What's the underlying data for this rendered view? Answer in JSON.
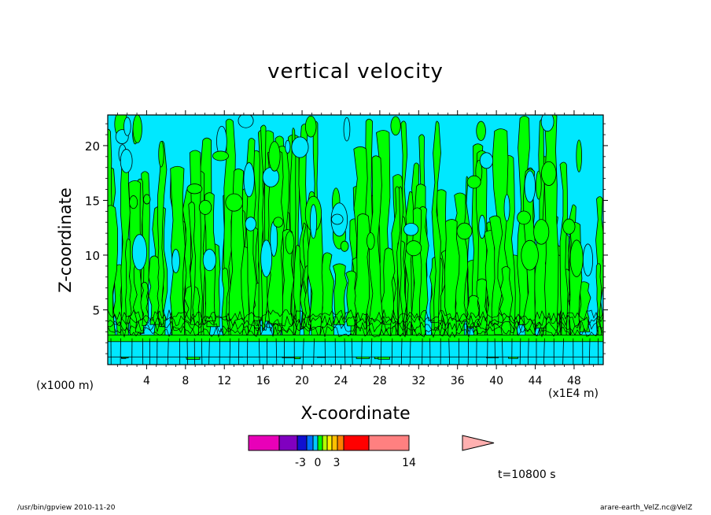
{
  "chart_data": {
    "type": "heatmap",
    "title": "vertical velocity",
    "xlabel": "X-coordinate",
    "ylabel": "Z-coordinate",
    "x_unit_left": "(x1000 m)",
    "x_unit_right": "(x1E4 m)",
    "x_ticks": [
      "4",
      "8",
      "12",
      "16",
      "20",
      "24",
      "28",
      "32",
      "36",
      "40",
      "44",
      "48"
    ],
    "x_tick_values": [
      4,
      8,
      12,
      16,
      20,
      24,
      28,
      32,
      36,
      40,
      44,
      48
    ],
    "y_ticks": [
      "5",
      "10",
      "15",
      "20"
    ],
    "y_tick_values": [
      5,
      10,
      15,
      20
    ],
    "xlim": [
      0,
      51
    ],
    "ylim": [
      0,
      22.8
    ],
    "grid": false,
    "colorbar": {
      "tick_labels": [
        "-3",
        "0",
        "3",
        "14"
      ],
      "colors": [
        "#e800b8",
        "#8000c0",
        "#1010d0",
        "#0070ff",
        "#00c8ff",
        "#00ff00",
        "#b4ff00",
        "#fff000",
        "#ffc000",
        "#ff8000",
        "#ff0000",
        "#ff8080"
      ],
      "extend_color": "#ffb0b0"
    },
    "field_colors": {
      "negative": "#00e8ff",
      "positive": "#00ff00"
    },
    "time_label": "t=10800 s"
  },
  "footer": {
    "left": "/usr/bin/gpview   2010-11-20",
    "right": "arare-earth_VelZ.nc@VelZ"
  }
}
